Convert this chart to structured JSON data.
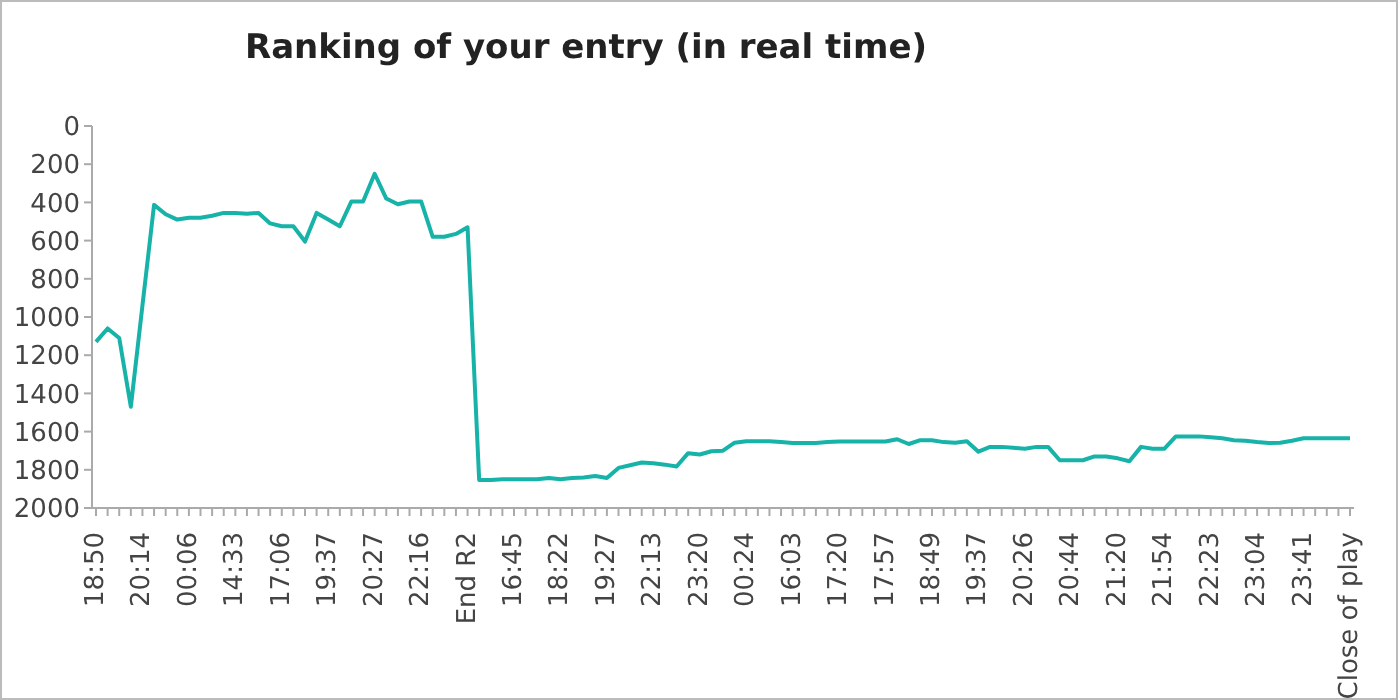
{
  "chart_data": {
    "type": "line",
    "title": "Ranking of your entry (in real time)",
    "categories": [
      "18:50",
      null,
      null,
      null,
      "20:14",
      null,
      null,
      null,
      "00:06",
      null,
      null,
      null,
      "14:33",
      null,
      null,
      null,
      "17:06",
      null,
      null,
      null,
      "19:37",
      null,
      null,
      null,
      "20:27",
      null,
      null,
      null,
      "22:16",
      null,
      null,
      null,
      "End R2",
      null,
      null,
      null,
      "16:45",
      null,
      null,
      null,
      "18:22",
      null,
      null,
      null,
      "19:27",
      null,
      null,
      null,
      "22:13",
      null,
      null,
      null,
      "23:20",
      null,
      null,
      null,
      "00:24",
      null,
      null,
      null,
      "16:03",
      null,
      null,
      null,
      "17:20",
      null,
      null,
      null,
      "17:57",
      null,
      null,
      null,
      "18:49",
      null,
      null,
      null,
      "19:37",
      null,
      null,
      null,
      "20:26",
      null,
      null,
      null,
      "20:44",
      null,
      null,
      null,
      "21:20",
      null,
      null,
      null,
      "21:54",
      null,
      null,
      null,
      "22:23",
      null,
      null,
      null,
      "23:04",
      null,
      null,
      null,
      "23:41",
      null,
      null,
      null,
      "Close of play"
    ],
    "series": [
      {
        "color": "#17b3a8",
        "values": [
          1130,
          1060,
          1110,
          1470,
          940,
          413,
          462,
          490,
          480,
          480,
          470,
          455,
          455,
          460,
          455,
          510,
          525,
          525,
          605,
          455,
          490,
          525,
          395,
          395,
          250,
          380,
          410,
          395,
          395,
          580,
          580,
          565,
          530,
          1853,
          1853,
          1850,
          1850,
          1850,
          1850,
          1843,
          1850,
          1843,
          1840,
          1832,
          1843,
          1790,
          1776,
          1762,
          1766,
          1773,
          1783,
          1713,
          1720,
          1703,
          1700,
          1658,
          1650,
          1650,
          1650,
          1655,
          1660,
          1660,
          1660,
          1655,
          1652,
          1652,
          1652,
          1652,
          1652,
          1640,
          1665,
          1645,
          1645,
          1655,
          1658,
          1650,
          1705,
          1680,
          1680,
          1685,
          1690,
          1680,
          1680,
          1750,
          1750,
          1750,
          1730,
          1730,
          1740,
          1755,
          1680,
          1690,
          1690,
          1625,
          1625,
          1625,
          1630,
          1635,
          1645,
          1648,
          1655,
          1660,
          1658,
          1648,
          1635,
          1635,
          1635,
          1635,
          1635
        ]
      }
    ],
    "ylim": [
      2000,
      0
    ],
    "yticks": [
      0,
      200,
      400,
      600,
      800,
      1000,
      1200,
      1400,
      1600,
      1800,
      2000
    ],
    "grid": false,
    "legend": false,
    "marker": "none",
    "line_style": "solid"
  }
}
